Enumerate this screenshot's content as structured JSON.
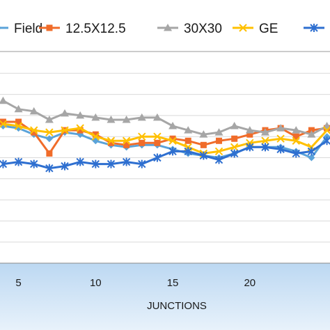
{
  "chart_data": {
    "type": "line",
    "title": "",
    "xlabel": "JUNCTIONS",
    "ylabel": "",
    "grid": true,
    "legend_position": "top",
    "x_ticks": [
      "5",
      "10",
      "15",
      "20"
    ],
    "xlim": [
      3.8,
      25.2
    ],
    "ylim": [
      0,
      10
    ],
    "x": [
      4,
      5,
      6,
      7,
      8,
      9,
      10,
      11,
      12,
      13,
      14,
      15,
      16,
      17,
      18,
      19,
      20,
      21,
      22,
      23,
      24,
      25
    ],
    "series": [
      {
        "name": "Field",
        "color": "#5ba3d9",
        "marker": "diamond",
        "values": [
          6.5,
          6.4,
          6.1,
          5.9,
          6.2,
          6.1,
          5.8,
          5.6,
          5.5,
          5.6,
          5.6,
          5.4,
          5.2,
          5.1,
          5.0,
          5.2,
          5.5,
          5.5,
          5.5,
          5.3,
          5.0,
          6.0
        ]
      },
      {
        "name": "12.5X12.5",
        "color": "#f06c2a",
        "marker": "square",
        "values": [
          6.7,
          6.7,
          6.2,
          5.2,
          6.3,
          6.3,
          6.1,
          5.7,
          5.6,
          5.7,
          5.7,
          5.9,
          5.8,
          5.6,
          5.8,
          5.9,
          6.1,
          6.3,
          6.4,
          6.0,
          6.3,
          6.4
        ]
      },
      {
        "name": "30X30",
        "color": "#a6a6a6",
        "marker": "triangle",
        "values": [
          7.7,
          7.3,
          7.2,
          6.8,
          7.1,
          7.0,
          6.9,
          6.8,
          6.8,
          6.9,
          6.9,
          6.5,
          6.3,
          6.1,
          6.2,
          6.5,
          6.3,
          6.2,
          6.4,
          6.3,
          6.1,
          6.5
        ]
      },
      {
        "name": "GE",
        "color": "#ffc000",
        "marker": "x",
        "values": [
          6.6,
          6.5,
          6.3,
          6.2,
          6.3,
          6.4,
          6.0,
          5.8,
          5.8,
          6.0,
          6.0,
          5.8,
          5.5,
          5.2,
          5.3,
          5.5,
          5.7,
          5.8,
          5.9,
          5.8,
          5.5,
          6.3
        ]
      },
      {
        "name": "",
        "color": "#2e6fd0",
        "marker": "star",
        "values": [
          4.7,
          4.8,
          4.7,
          4.5,
          4.6,
          4.8,
          4.7,
          4.7,
          4.8,
          4.7,
          5.0,
          5.3,
          5.3,
          5.1,
          4.9,
          5.2,
          5.5,
          5.5,
          5.4,
          5.2,
          5.3,
          5.8
        ]
      }
    ]
  }
}
